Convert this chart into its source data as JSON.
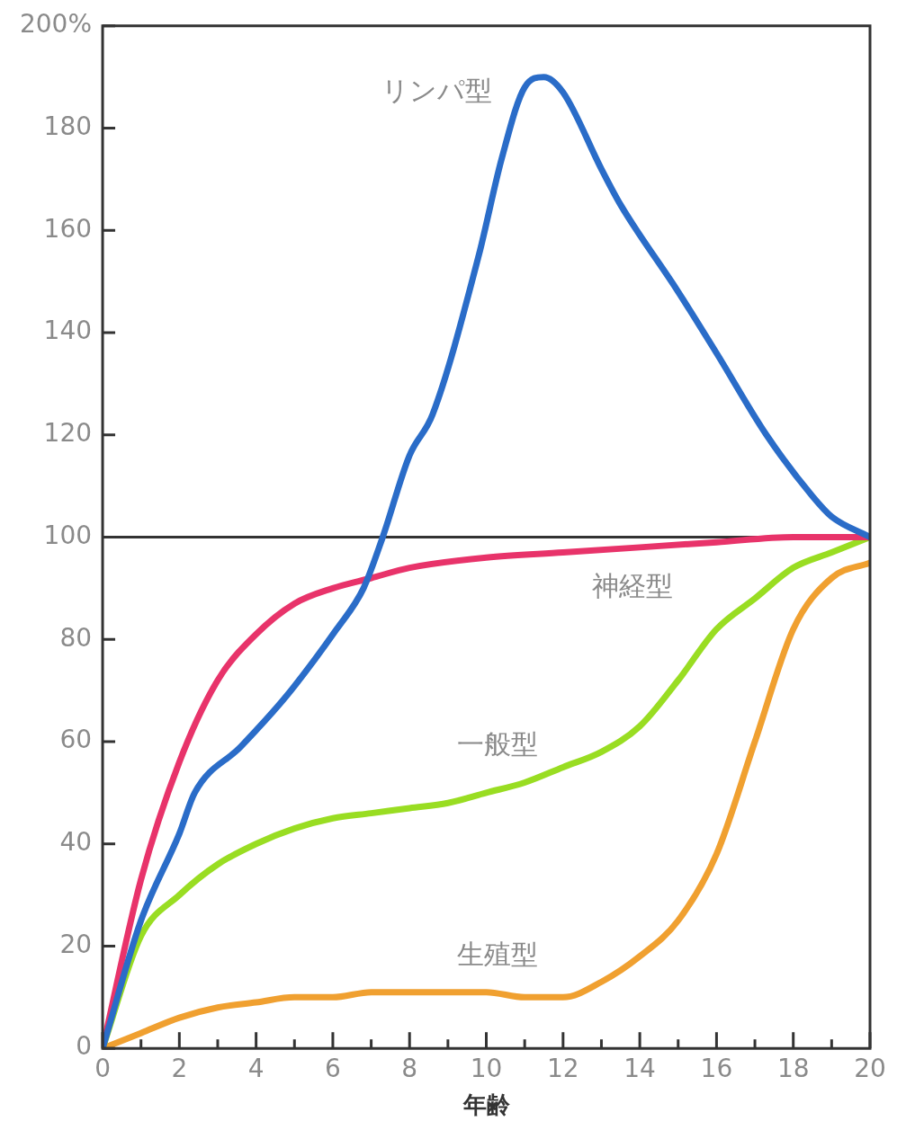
{
  "chart_data": {
    "type": "line",
    "xlabel": "年齢",
    "marker": "none",
    "legend": false,
    "grid": false,
    "xlim": [
      0,
      20
    ],
    "ylim": [
      0,
      200
    ],
    "xticks": [
      0,
      {
        "value": 1,
        "label": null
      },
      2,
      {
        "value": 3,
        "label": null
      },
      4,
      {
        "value": 5,
        "label": null
      },
      6,
      {
        "value": 7,
        "label": null
      },
      8,
      {
        "value": 9,
        "label": null
      },
      10,
      {
        "value": 11,
        "label": null
      },
      12,
      {
        "value": 13,
        "label": null
      },
      14,
      {
        "value": 15,
        "label": null
      },
      16,
      {
        "value": 17,
        "label": null
      },
      18,
      {
        "value": 19,
        "label": null
      },
      20
    ],
    "yticks": [
      0,
      20,
      40,
      60,
      80,
      100,
      120,
      140,
      160,
      180,
      {
        "value": 200,
        "label": "200%"
      }
    ],
    "ref_lines": [
      {
        "axis": "y",
        "value": 100,
        "color": "#333333"
      }
    ],
    "series": [
      {
        "name": "リンパ型",
        "color": "#2a6cc8",
        "x": [
          0,
          1,
          2,
          2.4,
          3.6,
          4.8,
          6.1,
          6.8,
          7.3,
          8,
          8.6,
          9.8,
          10.4,
          11,
          11.5,
          12,
          13,
          13.5,
          15,
          16,
          17.3,
          18.5,
          19,
          20
        ],
        "values": [
          0,
          25,
          42,
          50,
          59,
          69,
          82,
          90,
          100,
          116,
          124,
          155,
          174,
          188,
          190,
          187,
          172,
          165,
          148,
          136,
          120,
          108,
          104,
          100
        ]
      },
      {
        "name": "神経型",
        "color": "#e8336a",
        "x": [
          0,
          1,
          2,
          3,
          4,
          5,
          6,
          7,
          8,
          10,
          12,
          14,
          16,
          18,
          20
        ],
        "values": [
          0,
          33,
          56,
          72,
          81,
          87,
          90,
          92,
          94,
          96,
          97,
          98,
          99,
          100,
          100
        ]
      },
      {
        "name": "一般型",
        "color": "#99dd22",
        "x": [
          0,
          1,
          2,
          3,
          4,
          5,
          6,
          7,
          8,
          9,
          10,
          11,
          12,
          13,
          14,
          15,
          16,
          17,
          18,
          19,
          20
        ],
        "values": [
          0,
          22,
          30,
          36,
          40,
          43,
          45,
          46,
          47,
          48,
          50,
          52,
          55,
          58,
          63,
          72,
          82,
          88,
          94,
          97,
          100
        ]
      },
      {
        "name": "生殖型",
        "color": "#f0a030",
        "x": [
          0,
          1,
          2,
          3,
          4,
          5,
          6,
          7,
          8,
          9,
          10,
          11,
          12,
          13,
          14,
          15,
          16,
          17,
          18,
          19,
          20
        ],
        "values": [
          0,
          3,
          6,
          8,
          9,
          10,
          10,
          11,
          11,
          11,
          11,
          10,
          10,
          13,
          18,
          25,
          38,
          60,
          82,
          92,
          95
        ]
      }
    ]
  }
}
